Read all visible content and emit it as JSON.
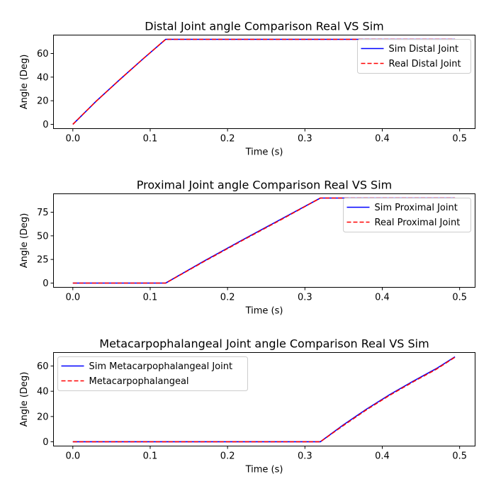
{
  "chart_data": [
    {
      "type": "line",
      "title": "Distal Joint angle Comparison Real VS Sim",
      "xlabel": "Time (s)",
      "ylabel": "Angle (Deg)",
      "xlim": [
        -0.025,
        0.52
      ],
      "ylim": [
        -3.6,
        75.6
      ],
      "xticks": [
        0.0,
        0.1,
        0.2,
        0.3,
        0.4,
        0.5
      ],
      "xtick_labels": [
        "0.0",
        "0.1",
        "0.2",
        "0.3",
        "0.4",
        "0.5"
      ],
      "yticks": [
        0,
        20,
        40,
        60
      ],
      "ytick_labels": [
        "0",
        "20",
        "40",
        "60"
      ],
      "grid": false,
      "legend_position": "upper right",
      "series": [
        {
          "name": "Sim Distal Joint",
          "color": "#0000ff",
          "style": "solid",
          "x": [
            0.0,
            0.03,
            0.06,
            0.09,
            0.12,
            0.494
          ],
          "y": [
            0,
            19.5,
            37.5,
            55,
            72,
            72
          ]
        },
        {
          "name": "Real Distal Joint",
          "color": "#ff0000",
          "style": "dashed",
          "x": [
            0.0,
            0.03,
            0.06,
            0.09,
            0.12,
            0.494
          ],
          "y": [
            0,
            19.5,
            37.5,
            55,
            72,
            72
          ]
        }
      ]
    },
    {
      "type": "line",
      "title": "Proximal Joint angle Comparison Real VS Sim",
      "xlabel": "Time (s)",
      "ylabel": "Angle (Deg)",
      "xlim": [
        -0.025,
        0.52
      ],
      "ylim": [
        -4.5,
        94.5
      ],
      "xticks": [
        0.0,
        0.1,
        0.2,
        0.3,
        0.4,
        0.5
      ],
      "xtick_labels": [
        "0.0",
        "0.1",
        "0.2",
        "0.3",
        "0.4",
        "0.5"
      ],
      "yticks": [
        0,
        25,
        50,
        75
      ],
      "ytick_labels": [
        "0",
        "25",
        "50",
        "75"
      ],
      "grid": false,
      "legend_position": "upper right",
      "series": [
        {
          "name": "Sim Proximal Joint",
          "color": "#0000ff",
          "style": "solid",
          "x": [
            0.0,
            0.12,
            0.17,
            0.22,
            0.27,
            0.32,
            0.494
          ],
          "y": [
            0,
            0,
            23.5,
            46,
            68,
            90,
            90
          ]
        },
        {
          "name": "Real Proximal Joint",
          "color": "#ff0000",
          "style": "dashed",
          "x": [
            0.0,
            0.12,
            0.17,
            0.22,
            0.27,
            0.32,
            0.494
          ],
          "y": [
            0,
            0,
            23,
            45.5,
            67.5,
            90,
            90
          ]
        }
      ]
    },
    {
      "type": "line",
      "title": "Metacarpophalangeal Joint angle Comparison Real VS Sim",
      "xlabel": "Time (s)",
      "ylabel": "Angle (Deg)",
      "xlim": [
        -0.025,
        0.52
      ],
      "ylim": [
        -3.4,
        70.7
      ],
      "xticks": [
        0.0,
        0.1,
        0.2,
        0.3,
        0.4,
        0.5
      ],
      "xtick_labels": [
        "0.0",
        "0.1",
        "0.2",
        "0.3",
        "0.4",
        "0.5"
      ],
      "yticks": [
        0,
        20,
        40,
        60
      ],
      "ytick_labels": [
        "0",
        "20",
        "40",
        "60"
      ],
      "grid": false,
      "legend_position": "upper left",
      "series": [
        {
          "name": "Sim Metacarpophalangeal Joint",
          "color": "#0000ff",
          "style": "solid",
          "x": [
            0.0,
            0.32,
            0.35,
            0.38,
            0.41,
            0.44,
            0.47,
            0.494
          ],
          "y": [
            0,
            0,
            13.5,
            26,
            37.5,
            48,
            58,
            67.3
          ]
        },
        {
          "name": "Metacarpophalangeal",
          "color": "#ff0000",
          "style": "dashed",
          "x": [
            0.0,
            0.32,
            0.35,
            0.38,
            0.41,
            0.44,
            0.47,
            0.494
          ],
          "y": [
            0,
            0,
            13,
            25.5,
            37,
            47.5,
            57.5,
            67
          ]
        }
      ]
    }
  ]
}
